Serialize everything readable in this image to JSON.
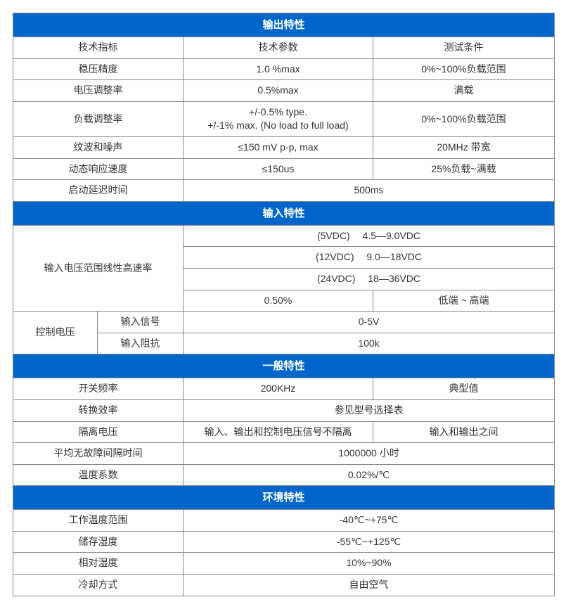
{
  "colors": {
    "header_bg": "#0066cc",
    "header_fg": "#ffffff",
    "border": "#888888",
    "cell_bg": "#ffffff",
    "text": "#333333"
  },
  "sections": {
    "output": {
      "title": "输出特性",
      "header": {
        "c1": "技术指标",
        "c2": "技术参数",
        "c3": "测试条件"
      },
      "rows": {
        "r1": {
          "label": "稳压精度",
          "param": "1.0 %max",
          "cond": "0%~100%负载范围"
        },
        "r2": {
          "label": "电压调整率",
          "param": "0.5%max",
          "cond": "满载"
        },
        "r3": {
          "label": "负载调整率",
          "param": "+/-0.5% type.\n+/-1% max. (No load to full load)",
          "cond": "0%~100%负载范围"
        },
        "r4": {
          "label": "纹波和噪声",
          "param": "≤150 mV p-p, max",
          "cond": "20MHz 带宽"
        },
        "r5": {
          "label": "动态响应速度",
          "param": "≤150us",
          "cond": "25%负载~满载"
        },
        "r6": {
          "label": "启动延迟时间",
          "param": "500ms"
        }
      }
    },
    "input": {
      "title": "输入特性",
      "rows": {
        "vrange_label": "输入电压范围线性高速率",
        "vr1": "(5VDC)  4.5—9.0VDC",
        "vr2": "(12VDC)  9.0—18VDC",
        "vr3": "(24VDC)  18—36VDC",
        "vr4_param": "0.50%",
        "vr4_cond": "低端 ~ 高端",
        "ctrl_label": "控制电压",
        "ctrl_sig_label": "输入信号",
        "ctrl_sig_val": "0-5V",
        "ctrl_imp_label": "输入阻抗",
        "ctrl_imp_val": "100k"
      }
    },
    "general": {
      "title": "一般特性",
      "rows": {
        "r1": {
          "label": "开关频率",
          "param": "200KHz",
          "cond": "典型值"
        },
        "r2": {
          "label": "转换效率",
          "param": "参见型号选择表"
        },
        "r3": {
          "label": "隔离电压",
          "param": "输入、输出和控制电压信号不隔离",
          "cond": "输入和输出之间"
        },
        "r4": {
          "label": "平均无故障间隔时间",
          "param": "1000000 小时"
        },
        "r5": {
          "label": "温度系数",
          "param": "0.02%/℃"
        }
      }
    },
    "environment": {
      "title": "环境特性",
      "rows": {
        "r1": {
          "label": "工作温度范围",
          "param": "-40℃~+75℃"
        },
        "r2": {
          "label": "储存湿度",
          "param": "-55℃~+125℃"
        },
        "r3": {
          "label": "相对湿度",
          "param": "10%~90%"
        },
        "r4": {
          "label": "冷却方式",
          "param": "自由空气"
        }
      }
    }
  }
}
